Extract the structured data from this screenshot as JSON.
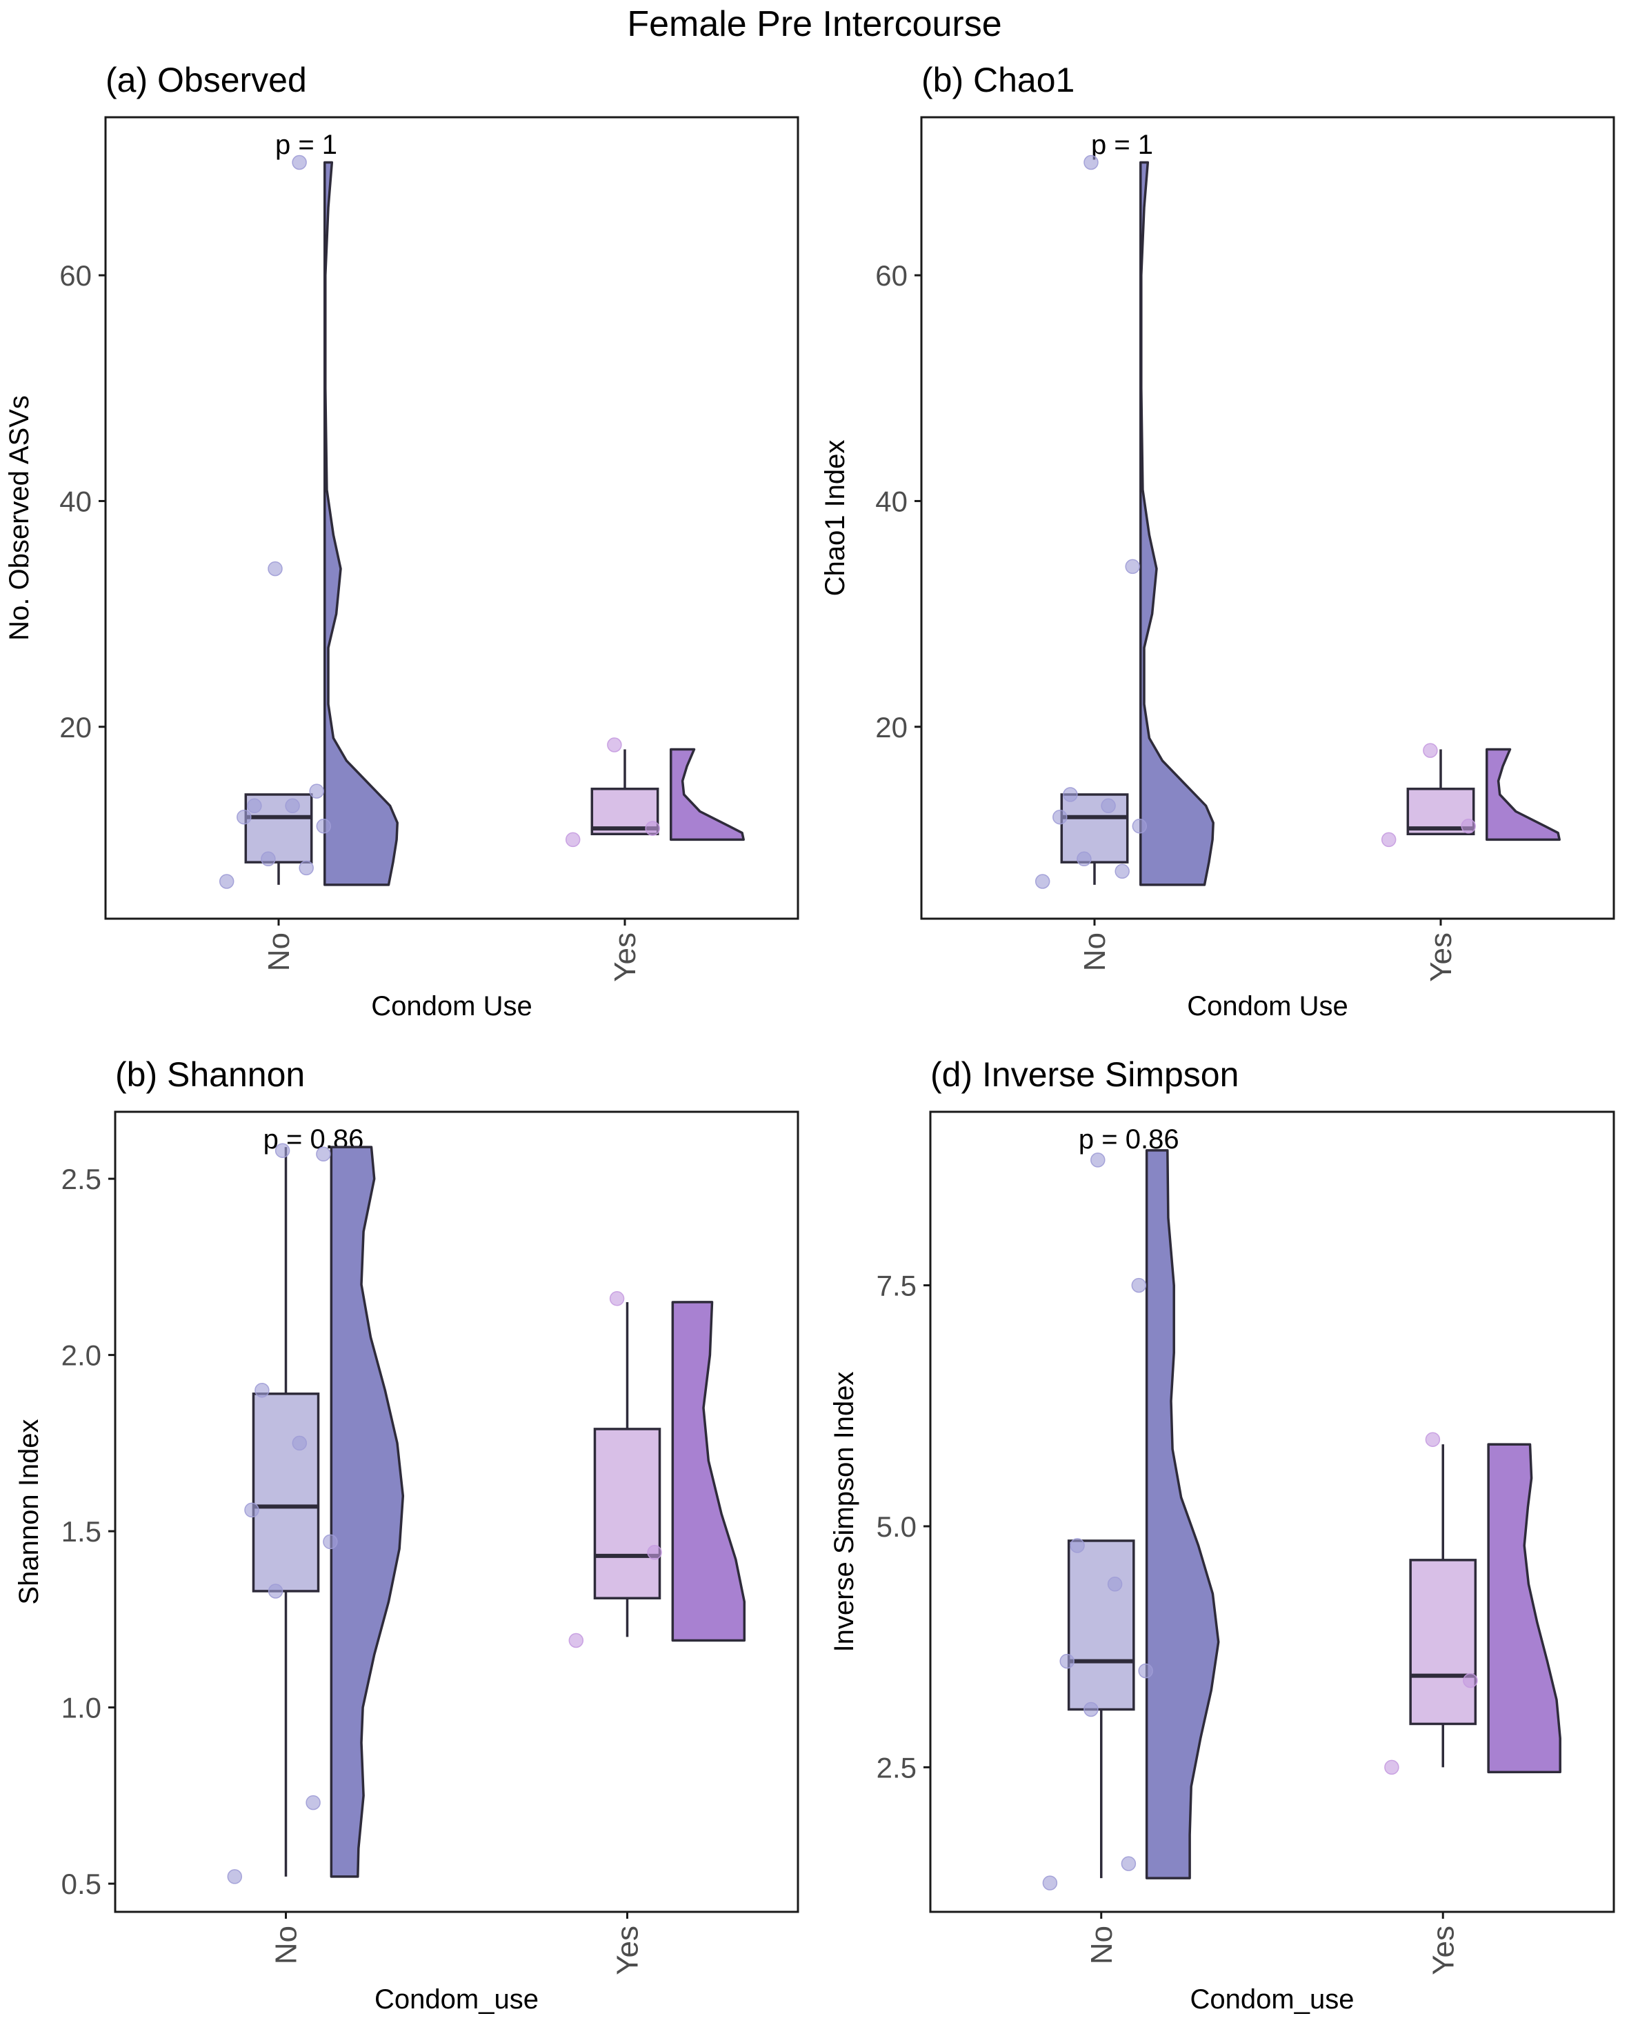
{
  "figure_title": "Female Pre Intercourse",
  "colors": {
    "no_box_fill": "#bfbde0",
    "no_violin_fill": "#8786c4",
    "no_point": "#9f9cd6",
    "yes_box_fill": "#d8bfe7",
    "yes_violin_fill": "#a881d1",
    "yes_point": "#c59be0",
    "outline": "#2e2b3a",
    "axis": "#1a1a1a"
  },
  "chart_data": [
    {
      "type": "box",
      "title": "(a) Observed",
      "xlabel": "Condom Use",
      "ylabel": "No. Observed ASVs",
      "categories": [
        "No",
        "Yes"
      ],
      "ylim": [
        3,
        74
      ],
      "yticks": [
        20,
        40,
        60
      ],
      "ytick_labels": [
        "20",
        "40",
        "60"
      ],
      "annotation": "p = 1",
      "grid": false,
      "groups": [
        {
          "name": "No",
          "box": {
            "min": 6,
            "q1": 8,
            "median": 12,
            "q3": 14,
            "max": 14
          },
          "points": [
            6.3,
            7.5,
            8.3,
            11.2,
            12,
            13,
            13,
            14.3,
            34,
            70
          ],
          "violin": {
            "y": [
              6,
              8,
              10,
              11.5,
              13,
              15,
              17,
              19,
              22,
              27,
              30,
              34,
              37,
              41,
              50,
              60,
              66,
              70
            ],
            "w": [
              0.88,
              0.94,
              0.99,
              1.0,
              0.9,
              0.6,
              0.3,
              0.12,
              0.05,
              0.05,
              0.16,
              0.22,
              0.12,
              0.03,
              0.01,
              0.01,
              0.05,
              0.1
            ]
          }
        },
        {
          "name": "Yes",
          "box": {
            "min": 10.5,
            "q1": 10.5,
            "median": 11,
            "q3": 14.5,
            "max": 18
          },
          "points": [
            10,
            11,
            18.4
          ],
          "violin": {
            "y": [
              10,
              10.6,
              11.2,
              12.5,
              14,
              15.2,
              16.5,
              18
            ],
            "w": [
              1.0,
              0.98,
              0.8,
              0.4,
              0.18,
              0.16,
              0.22,
              0.32
            ]
          }
        }
      ]
    },
    {
      "type": "box",
      "title": "(b) Chao1",
      "xlabel": "Condom Use",
      "ylabel": "Chao1 Index",
      "categories": [
        "No",
        "Yes"
      ],
      "ylim": [
        3,
        74
      ],
      "yticks": [
        20,
        40,
        60
      ],
      "ytick_labels": [
        "20",
        "40",
        "60"
      ],
      "annotation": "p = 1",
      "grid": false,
      "groups": [
        {
          "name": "No",
          "box": {
            "min": 6,
            "q1": 8,
            "median": 12,
            "q3": 14,
            "max": 14
          },
          "points": [
            6.3,
            7.2,
            8.3,
            11.2,
            12,
            13,
            14,
            34.2,
            70
          ],
          "violin": {
            "y": [
              6,
              8,
              10,
              11.5,
              13,
              15,
              17,
              19,
              22,
              27,
              30,
              34,
              37,
              41,
              50,
              60,
              66,
              70
            ],
            "w": [
              0.88,
              0.94,
              0.99,
              1.0,
              0.9,
              0.6,
              0.3,
              0.12,
              0.05,
              0.05,
              0.16,
              0.22,
              0.12,
              0.03,
              0.01,
              0.01,
              0.05,
              0.1
            ]
          }
        },
        {
          "name": "Yes",
          "box": {
            "min": 10.5,
            "q1": 10.5,
            "median": 11,
            "q3": 14.5,
            "max": 18
          },
          "points": [
            10,
            11.2,
            17.9
          ],
          "violin": {
            "y": [
              10,
              10.6,
              11.2,
              12.5,
              14,
              15.2,
              16.5,
              18
            ],
            "w": [
              1.0,
              0.98,
              0.8,
              0.4,
              0.18,
              0.16,
              0.22,
              0.32
            ]
          }
        }
      ]
    },
    {
      "type": "box",
      "title": "(b) Shannon",
      "xlabel": "Condom_use",
      "ylabel": "Shannon Index",
      "categories": [
        "No",
        "Yes"
      ],
      "ylim": [
        0.42,
        2.69
      ],
      "yticks": [
        0.5,
        1.0,
        1.5,
        2.0,
        2.5
      ],
      "ytick_labels": [
        "0.5",
        "1.0",
        "1.5",
        "2.0",
        "2.5"
      ],
      "annotation": "p = 0.86",
      "grid": false,
      "groups": [
        {
          "name": "No",
          "box": {
            "min": 0.52,
            "q1": 1.33,
            "median": 1.57,
            "q3": 1.89,
            "max": 2.59
          },
          "points": [
            0.52,
            0.73,
            1.33,
            1.47,
            1.56,
            1.75,
            1.9,
            2.57,
            2.58
          ],
          "violin": {
            "y": [
              0.52,
              0.6,
              0.75,
              0.9,
              1.0,
              1.15,
              1.3,
              1.45,
              1.6,
              1.75,
              1.9,
              2.05,
              2.2,
              2.35,
              2.5,
              2.59
            ],
            "w": [
              0.37,
              0.38,
              0.45,
              0.42,
              0.44,
              0.6,
              0.8,
              0.95,
              1.0,
              0.92,
              0.75,
              0.55,
              0.42,
              0.45,
              0.6,
              0.56
            ]
          }
        },
        {
          "name": "Yes",
          "box": {
            "min": 1.2,
            "q1": 1.31,
            "median": 1.43,
            "q3": 1.79,
            "max": 2.15
          },
          "points": [
            1.19,
            1.44,
            2.16
          ],
          "violin": {
            "y": [
              1.19,
              1.3,
              1.42,
              1.55,
              1.7,
              1.85,
              2.0,
              2.15
            ],
            "w": [
              1.0,
              1.0,
              0.88,
              0.68,
              0.5,
              0.43,
              0.52,
              0.55
            ]
          }
        }
      ]
    },
    {
      "type": "box",
      "title": "(d) Inverse Simpson",
      "xlabel": "Condom_use",
      "ylabel": "Inverse Simpson Index",
      "categories": [
        "No",
        "Yes"
      ],
      "ylim": [
        1.0,
        9.3
      ],
      "yticks": [
        2.5,
        5.0,
        7.5
      ],
      "ytick_labels": [
        "2.5",
        "5.0",
        "7.5"
      ],
      "annotation": "p = 0.86",
      "grid": false,
      "groups": [
        {
          "name": "No",
          "box": {
            "min": 1.35,
            "q1": 3.1,
            "median": 3.6,
            "q3": 4.85,
            "max": 4.85
          },
          "points": [
            1.3,
            1.5,
            3.1,
            3.5,
            3.6,
            4.4,
            4.8,
            7.5,
            8.8
          ],
          "violin": {
            "y": [
              1.35,
              1.8,
              2.3,
              2.8,
              3.3,
              3.8,
              4.3,
              4.8,
              5.3,
              5.8,
              6.3,
              6.8,
              7.5,
              8.2,
              8.9
            ],
            "w": [
              0.6,
              0.6,
              0.62,
              0.75,
              0.9,
              1.0,
              0.92,
              0.72,
              0.48,
              0.36,
              0.34,
              0.38,
              0.38,
              0.3,
              0.29
            ]
          }
        },
        {
          "name": "Yes",
          "box": {
            "min": 2.5,
            "q1": 2.95,
            "median": 3.45,
            "q3": 4.65,
            "max": 5.85
          },
          "points": [
            2.5,
            3.4,
            5.9
          ],
          "violin": {
            "y": [
              2.45,
              2.8,
              3.2,
              3.6,
              4.0,
              4.4,
              4.8,
              5.2,
              5.5,
              5.85
            ],
            "w": [
              1.0,
              1.0,
              0.95,
              0.82,
              0.68,
              0.56,
              0.5,
              0.55,
              0.6,
              0.58
            ]
          }
        }
      ]
    }
  ]
}
